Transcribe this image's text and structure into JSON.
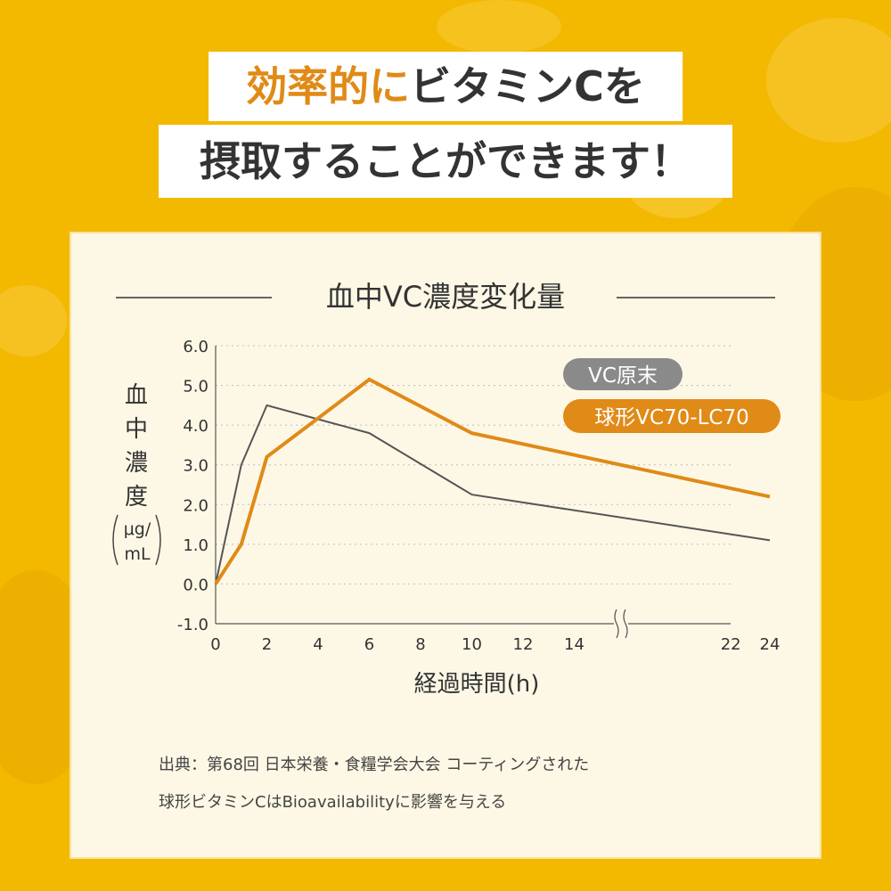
{
  "headline": {
    "line1_accent": "効率的に",
    "line1_rest": "ビタミンCを",
    "line2": "摂取することができます！"
  },
  "colors": {
    "background": "#f3b800",
    "panel": "#fdf8e6",
    "accent_orange": "#e08a17",
    "reference_gray": "#555555",
    "badge_gray": "#8a8a8a"
  },
  "chart_data": {
    "type": "line",
    "title": "血中VC濃度変化量",
    "ylabel_chars": [
      "血",
      "中",
      "濃",
      "度"
    ],
    "ylabel_unit_top": "μg/",
    "ylabel_unit_bottom": "mL",
    "xlabel": "経過時間(h)",
    "ylim": [
      -1.0,
      6.0
    ],
    "y_ticks": [
      "6.0",
      "5.0",
      "4.0",
      "3.0",
      "2.0",
      "1.0",
      "0.0",
      "-1.0"
    ],
    "x_ticks": [
      "0",
      "2",
      "4",
      "6",
      "8",
      "10",
      "12",
      "14",
      "22",
      "24"
    ],
    "x_axis_break": "between 14 and 22",
    "grid": "horizontal dotted",
    "legend_placement": "top-right",
    "series": [
      {
        "name": "VC原末",
        "color": "#555555",
        "x": [
          0,
          1,
          2,
          6,
          10,
          24
        ],
        "y": [
          0.0,
          3.0,
          4.5,
          3.8,
          2.25,
          1.1
        ]
      },
      {
        "name": "球形VC70-LC70",
        "color": "#e08a17",
        "x": [
          0,
          1,
          2,
          6,
          10,
          24
        ],
        "y": [
          0.0,
          1.0,
          3.2,
          5.15,
          3.8,
          2.2
        ]
      }
    ]
  },
  "source": {
    "line1": "出典：第68回 日本栄養・食糧学会大会 コーティングされた",
    "line2": "球形ビタミンCはBioavailabilityに影響を与える"
  }
}
